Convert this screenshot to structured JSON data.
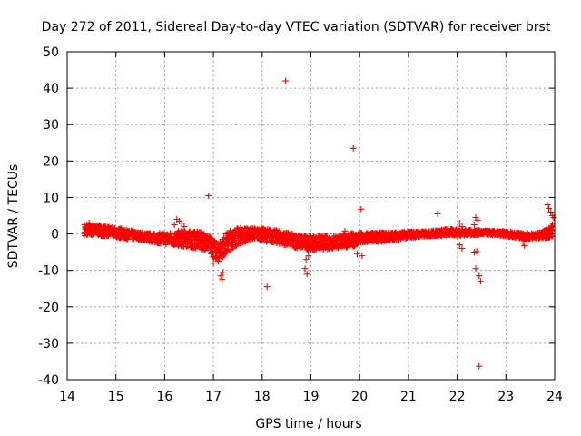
{
  "chart_data": {
    "type": "scatter",
    "title": "Day 272 of 2011, Sidereal Day-to-day VTEC variation (SDTVAR) for receiver brst",
    "xlabel": "GPS time / hours",
    "ylabel": "SDTVAR / TECUs",
    "xlim": [
      14,
      24
    ],
    "ylim": [
      -40,
      50
    ],
    "xticks": [
      14,
      15,
      16,
      17,
      18,
      19,
      20,
      21,
      22,
      23,
      24
    ],
    "yticks": [
      -40,
      -30,
      -20,
      -10,
      0,
      10,
      20,
      30,
      40,
      50
    ],
    "grid": true,
    "marker": "+",
    "color": "#ff0000",
    "band": [
      [
        14.35,
        -0.5,
        2.8
      ],
      [
        14.6,
        -0.6,
        2.6
      ],
      [
        14.9,
        -0.8,
        2.0
      ],
      [
        15.2,
        -1.5,
        1.2
      ],
      [
        15.5,
        -1.8,
        0.6
      ],
      [
        15.8,
        -2.5,
        0.2
      ],
      [
        16.1,
        -3.2,
        0.5
      ],
      [
        16.35,
        -3.6,
        1.0
      ],
      [
        16.6,
        -4.0,
        0.8
      ],
      [
        16.85,
        -4.5,
        0.5
      ],
      [
        17.0,
        -6.5,
        -1.5
      ],
      [
        17.15,
        -7.0,
        -2.0
      ],
      [
        17.3,
        -5.0,
        1.0
      ],
      [
        17.5,
        -3.0,
        1.8
      ],
      [
        17.8,
        -1.5,
        1.8
      ],
      [
        18.1,
        -2.2,
        1.5
      ],
      [
        18.4,
        -3.0,
        0.8
      ],
      [
        18.7,
        -4.0,
        0.0
      ],
      [
        19.0,
        -4.5,
        -0.5
      ],
      [
        19.3,
        -4.3,
        -0.5
      ],
      [
        19.6,
        -4.0,
        -0.2
      ],
      [
        19.9,
        -3.5,
        0.5
      ],
      [
        20.2,
        -2.5,
        0.5
      ],
      [
        20.6,
        -2.0,
        0.5
      ],
      [
        21.0,
        -1.2,
        0.8
      ],
      [
        21.4,
        -0.8,
        0.8
      ],
      [
        21.8,
        -0.6,
        1.5
      ],
      [
        22.2,
        -0.5,
        1.2
      ],
      [
        22.6,
        -0.3,
        1.0
      ],
      [
        23.0,
        -0.8,
        0.8
      ],
      [
        23.4,
        -1.5,
        0.3
      ],
      [
        23.7,
        -1.3,
        0.5
      ],
      [
        23.85,
        -1.2,
        1.5
      ],
      [
        23.97,
        -1.0,
        3.0
      ]
    ],
    "points": [
      [
        18.48,
        42.0
      ],
      [
        19.87,
        23.5
      ],
      [
        16.9,
        10.5
      ],
      [
        20.03,
        6.8
      ],
      [
        21.6,
        5.5
      ],
      [
        23.85,
        8.0
      ],
      [
        23.88,
        7.0
      ],
      [
        23.92,
        6.0
      ],
      [
        23.95,
        5.0
      ],
      [
        23.98,
        4.5
      ],
      [
        22.38,
        4.5
      ],
      [
        22.42,
        3.8
      ],
      [
        22.35,
        2.5
      ],
      [
        22.05,
        3.0
      ],
      [
        22.1,
        2.0
      ],
      [
        16.25,
        4.0
      ],
      [
        16.3,
        3.5
      ],
      [
        16.35,
        3.0
      ],
      [
        16.2,
        2.5
      ],
      [
        16.4,
        2.0
      ],
      [
        17.05,
        -6.5
      ],
      [
        17.1,
        -7.5
      ],
      [
        17.2,
        -10.5
      ],
      [
        17.15,
        -11.5
      ],
      [
        17.18,
        -12.5
      ],
      [
        18.1,
        -14.5
      ],
      [
        18.88,
        -9.5
      ],
      [
        18.92,
        -11.0
      ],
      [
        18.9,
        -7.0
      ],
      [
        18.95,
        -6.0
      ],
      [
        19.95,
        -5.5
      ],
      [
        20.05,
        -6.0
      ],
      [
        22.05,
        -3.0
      ],
      [
        22.1,
        -4.0
      ],
      [
        22.35,
        -5.0
      ],
      [
        22.4,
        -4.8
      ],
      [
        22.38,
        -9.5
      ],
      [
        22.45,
        -11.5
      ],
      [
        22.48,
        -13.0
      ],
      [
        22.45,
        -36.3
      ],
      [
        23.35,
        -2.5
      ],
      [
        23.38,
        -3.2
      ],
      [
        23.82,
        -1.0
      ],
      [
        19.7,
        0.8
      ],
      [
        16.95,
        -5.5
      ],
      [
        17.0,
        -8.0
      ],
      [
        14.4,
        2.5
      ],
      [
        14.45,
        3.0
      ],
      [
        15.1,
        1.5
      ],
      [
        17.9,
        1.2
      ]
    ]
  }
}
